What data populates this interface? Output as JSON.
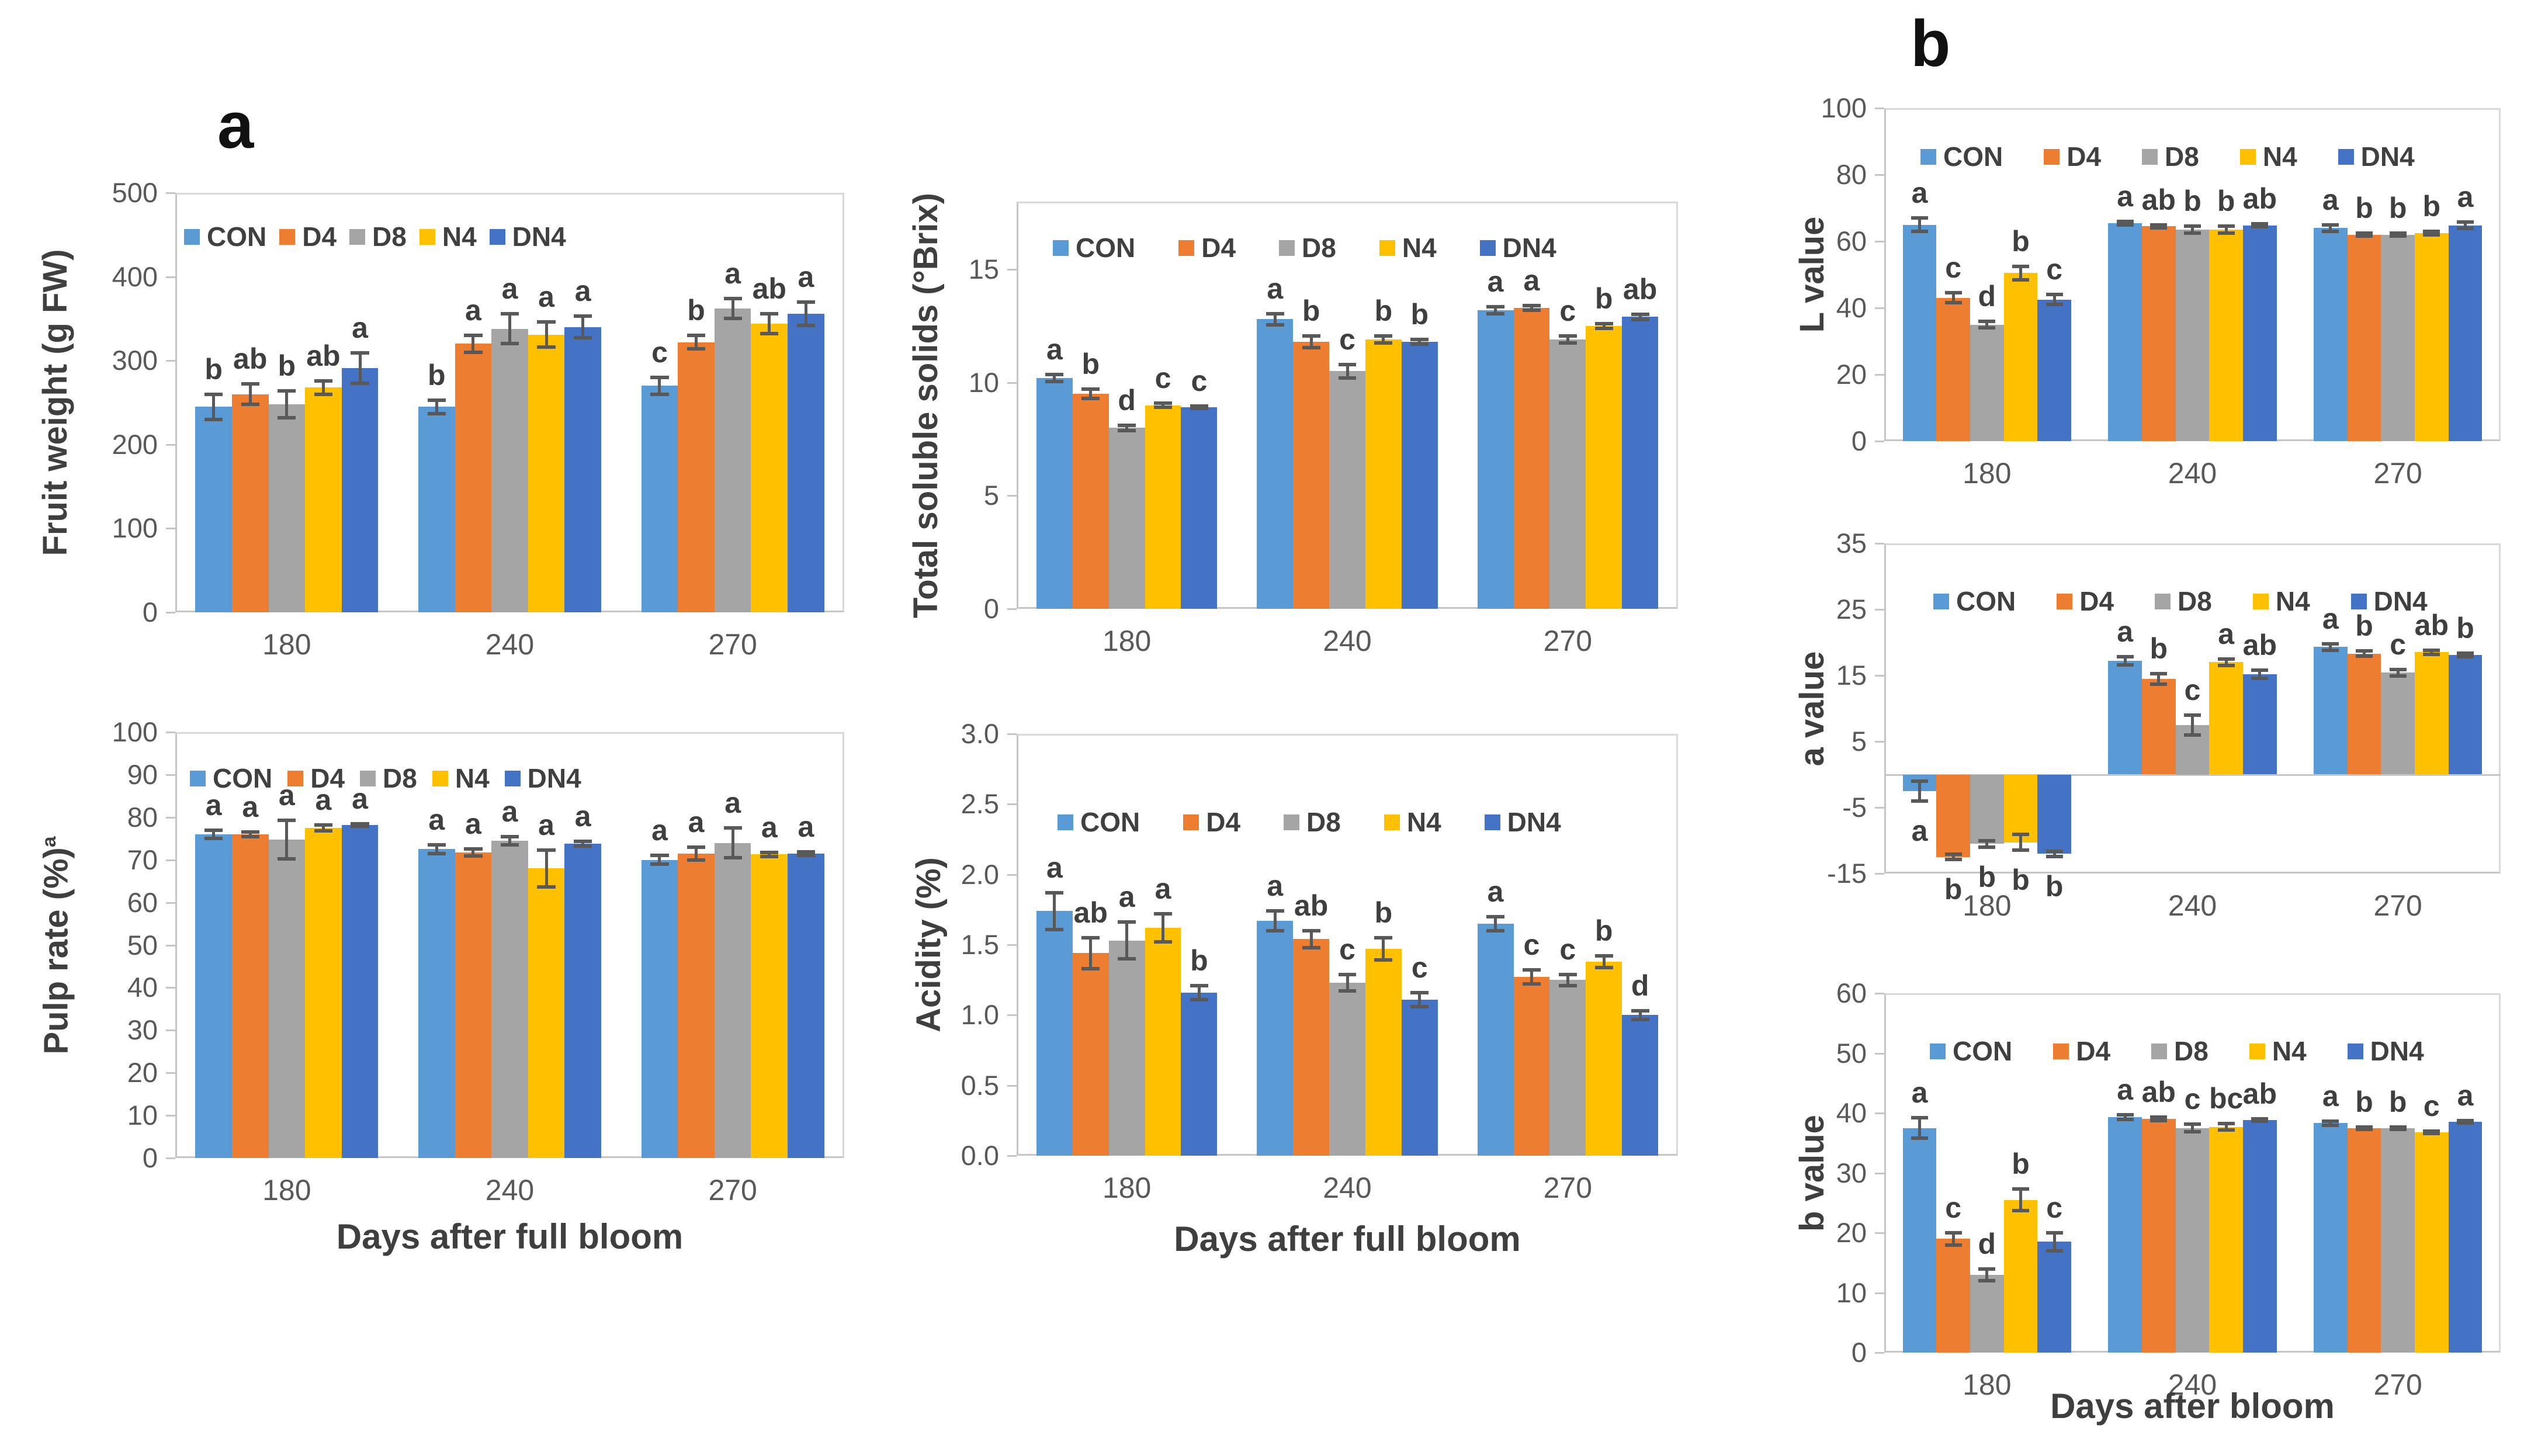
{
  "figure": {
    "panel_a_label": "a",
    "panel_b_label": "b"
  },
  "legend_labels": [
    "CON",
    "D4",
    "D8",
    "N4",
    "DN4"
  ],
  "colors": {
    "CON": "#5B9BD5",
    "D4": "#ED7D31",
    "D8": "#A5A5A5",
    "N4": "#FFC000",
    "DN4": "#4472C4",
    "axis_text": "#595959",
    "letter_text": "#3f3f3f",
    "error_bar": "#595959"
  },
  "chart_data": [
    {
      "id": "fruit-weight",
      "type": "bar",
      "ylabel": "Fruit weight (g FW)",
      "xlabel": "",
      "categories": [
        "180",
        "240",
        "270"
      ],
      "ylim": [
        0,
        500
      ],
      "yticks": [
        0,
        100,
        200,
        300,
        400,
        500
      ],
      "ytick_decimals": 0,
      "legend_position": "top-inside",
      "series": [
        {
          "name": "CON",
          "values": [
            245,
            245,
            270
          ],
          "errors": [
            15,
            8,
            10
          ],
          "letters": [
            "b",
            "b",
            "c"
          ]
        },
        {
          "name": "D4",
          "values": [
            260,
            320,
            322
          ],
          "errors": [
            12,
            10,
            8
          ],
          "letters": [
            "ab",
            "a",
            "b"
          ]
        },
        {
          "name": "D8",
          "values": [
            248,
            338,
            362
          ],
          "errors": [
            16,
            18,
            12
          ],
          "letters": [
            "b",
            "a",
            "a"
          ]
        },
        {
          "name": "N4",
          "values": [
            268,
            331,
            344
          ],
          "errors": [
            8,
            15,
            12
          ],
          "letters": [
            "ab",
            "a",
            "ab"
          ]
        },
        {
          "name": "DN4",
          "values": [
            291,
            340,
            356
          ],
          "errors": [
            18,
            13,
            14
          ],
          "letters": [
            "a",
            "a",
            "a"
          ]
        }
      ]
    },
    {
      "id": "total-soluble-solids",
      "type": "bar",
      "ylabel": "Total soluble solids (°Brix)",
      "xlabel": "",
      "categories": [
        "180",
        "240",
        "270"
      ],
      "ylim": [
        0,
        18
      ],
      "yticks": [
        0,
        5,
        10,
        15
      ],
      "ytick_decimals": 0,
      "legend_position": "top-inside",
      "series": [
        {
          "name": "CON",
          "values": [
            10.2,
            12.8,
            13.2
          ],
          "errors": [
            0.15,
            0.25,
            0.15
          ],
          "letters": [
            "a",
            "a",
            "a"
          ]
        },
        {
          "name": "D4",
          "values": [
            9.5,
            11.8,
            13.3
          ],
          "errors": [
            0.2,
            0.25,
            0.1
          ],
          "letters": [
            "b",
            "b",
            "a"
          ]
        },
        {
          "name": "D8",
          "values": [
            8.0,
            10.5,
            11.9
          ],
          "errors": [
            0.12,
            0.3,
            0.15
          ],
          "letters": [
            "d",
            "c",
            "c"
          ]
        },
        {
          "name": "N4",
          "values": [
            9.0,
            11.9,
            12.5
          ],
          "errors": [
            0.1,
            0.15,
            0.1
          ],
          "letters": [
            "c",
            "b",
            "b"
          ]
        },
        {
          "name": "DN4",
          "values": [
            8.9,
            11.8,
            12.9
          ],
          "errors": [
            0.05,
            0.1,
            0.12
          ],
          "letters": [
            "c",
            "b",
            "ab"
          ]
        }
      ]
    },
    {
      "id": "pulp-rate",
      "type": "bar",
      "ylabel": "Pulp rate (%)",
      "ylabel_sup": "a",
      "xlabel": "Days after full bloom",
      "categories": [
        "180",
        "240",
        "270"
      ],
      "ylim": [
        0,
        100
      ],
      "yticks": [
        0,
        10,
        20,
        30,
        40,
        50,
        60,
        70,
        80,
        90,
        100
      ],
      "ytick_decimals": 0,
      "legend_position": "top-inside",
      "series": [
        {
          "name": "CON",
          "values": [
            76,
            72.5,
            70
          ],
          "errors": [
            1,
            1,
            1
          ],
          "letters": [
            "a",
            "a",
            "a"
          ]
        },
        {
          "name": "D4",
          "values": [
            76,
            71.7,
            71.5
          ],
          "errors": [
            0.5,
            0.8,
            1.5
          ],
          "letters": [
            "a",
            "a",
            "a"
          ]
        },
        {
          "name": "D8",
          "values": [
            74.8,
            74.5,
            74
          ],
          "errors": [
            4.5,
            1,
            3.5
          ],
          "letters": [
            "a",
            "a",
            "a"
          ]
        },
        {
          "name": "N4",
          "values": [
            77.5,
            68,
            71.3
          ],
          "errors": [
            0.7,
            4.3,
            0.5
          ],
          "letters": [
            "a",
            "a",
            "a"
          ]
        },
        {
          "name": "DN4",
          "values": [
            78.2,
            73.8,
            71.5
          ],
          "errors": [
            0.3,
            0.6,
            0.4
          ],
          "letters": [
            "a",
            "a",
            "a"
          ]
        }
      ]
    },
    {
      "id": "acidity",
      "type": "bar",
      "ylabel": "Acidity (%)",
      "xlabel": "Days after full bloom",
      "categories": [
        "180",
        "240",
        "270"
      ],
      "ylim": [
        0,
        3
      ],
      "yticks": [
        0,
        0.5,
        1,
        1.5,
        2,
        2.5,
        3
      ],
      "ytick_decimals": 1,
      "legend_position": "top-inside",
      "series": [
        {
          "name": "CON",
          "values": [
            1.74,
            1.67,
            1.65
          ],
          "errors": [
            0.13,
            0.07,
            0.05
          ],
          "letters": [
            "a",
            "a",
            "a"
          ]
        },
        {
          "name": "D4",
          "values": [
            1.44,
            1.54,
            1.27
          ],
          "errors": [
            0.11,
            0.06,
            0.05
          ],
          "letters": [
            "ab",
            "ab",
            "c"
          ]
        },
        {
          "name": "D8",
          "values": [
            1.53,
            1.23,
            1.25
          ],
          "errors": [
            0.13,
            0.06,
            0.04
          ],
          "letters": [
            "a",
            "c",
            "c"
          ]
        },
        {
          "name": "N4",
          "values": [
            1.62,
            1.47,
            1.38
          ],
          "errors": [
            0.1,
            0.08,
            0.04
          ],
          "letters": [
            "a",
            "b",
            "b"
          ]
        },
        {
          "name": "DN4",
          "values": [
            1.16,
            1.11,
            1.0
          ],
          "errors": [
            0.05,
            0.05,
            0.03
          ],
          "letters": [
            "b",
            "c",
            "d"
          ]
        }
      ]
    },
    {
      "id": "l-value",
      "type": "bar",
      "ylabel": "L value",
      "xlabel": "",
      "categories": [
        "180",
        "240",
        "270"
      ],
      "ylim": [
        0,
        100
      ],
      "yticks": [
        0,
        20,
        40,
        60,
        80,
        100
      ],
      "ytick_decimals": 0,
      "legend_position": "top-inside",
      "series": [
        {
          "name": "CON",
          "values": [
            65,
            65.5,
            64
          ],
          "errors": [
            2,
            0.5,
            1
          ],
          "letters": [
            "a",
            "a",
            "a"
          ]
        },
        {
          "name": "D4",
          "values": [
            43,
            64.5,
            62
          ],
          "errors": [
            1.5,
            0.5,
            0.5
          ],
          "letters": [
            "c",
            "ab",
            "b"
          ]
        },
        {
          "name": "D8",
          "values": [
            35,
            63.5,
            62
          ],
          "errors": [
            1,
            1,
            0.5
          ],
          "letters": [
            "d",
            "b",
            "b"
          ]
        },
        {
          "name": "N4",
          "values": [
            50.5,
            63.5,
            62.5
          ],
          "errors": [
            2,
            1,
            0.5
          ],
          "letters": [
            "b",
            "b",
            "b"
          ]
        },
        {
          "name": "DN4",
          "values": [
            42.5,
            64.8,
            64.8
          ],
          "errors": [
            1.5,
            0.5,
            1
          ],
          "letters": [
            "c",
            "ab",
            "a"
          ]
        }
      ]
    },
    {
      "id": "a-value",
      "type": "bar",
      "ylabel": "a value",
      "xlabel": "",
      "categories": [
        "180",
        "240",
        "270"
      ],
      "ylim": [
        -15,
        35
      ],
      "yticks": [
        -15,
        -5,
        5,
        15,
        25,
        35
      ],
      "ytick_decimals": 0,
      "legend_position": "top-inside",
      "series": [
        {
          "name": "CON",
          "values": [
            -2.5,
            17.2,
            19.3
          ],
          "errors": [
            1.5,
            0.6,
            0.5
          ],
          "letters": [
            "a",
            "a",
            "a"
          ]
        },
        {
          "name": "D4",
          "values": [
            -12.5,
            14.5,
            18.3
          ],
          "errors": [
            0.4,
            0.8,
            0.4
          ],
          "letters": [
            "b",
            "b",
            "b"
          ]
        },
        {
          "name": "D8",
          "values": [
            -10.5,
            7.5,
            15.4
          ],
          "errors": [
            0.5,
            1.5,
            0.5
          ],
          "letters": [
            "b",
            "c",
            "c"
          ]
        },
        {
          "name": "N4",
          "values": [
            -10.3,
            17,
            18.5
          ],
          "errors": [
            1.2,
            0.5,
            0.3
          ],
          "letters": [
            "b",
            "a",
            "ab"
          ]
        },
        {
          "name": "DN4",
          "values": [
            -12,
            15.2,
            18.1
          ],
          "errors": [
            0.4,
            0.6,
            0.3
          ],
          "letters": [
            "b",
            "ab",
            "b"
          ]
        }
      ]
    },
    {
      "id": "b-value",
      "type": "bar",
      "ylabel": "b value",
      "xlabel": "Days after bloom",
      "categories": [
        "180",
        "240",
        "270"
      ],
      "ylim": [
        0,
        60
      ],
      "yticks": [
        0,
        10,
        20,
        30,
        40,
        50,
        60
      ],
      "ytick_decimals": 0,
      "legend_position": "top-inside",
      "series": [
        {
          "name": "CON",
          "values": [
            37.5,
            39.3,
            38.3
          ],
          "errors": [
            1.7,
            0.4,
            0.3
          ],
          "letters": [
            "a",
            "a",
            "a"
          ]
        },
        {
          "name": "D4",
          "values": [
            19,
            39,
            37.5
          ],
          "errors": [
            1,
            0.3,
            0.2
          ],
          "letters": [
            "c",
            "ab",
            "b"
          ]
        },
        {
          "name": "D8",
          "values": [
            13,
            37.5,
            37.5
          ],
          "errors": [
            1,
            0.6,
            0.2
          ],
          "letters": [
            "d",
            "c",
            "b"
          ]
        },
        {
          "name": "N4",
          "values": [
            25.5,
            37.7,
            36.8
          ],
          "errors": [
            1.8,
            0.5,
            0.2
          ],
          "letters": [
            "b",
            "bc",
            "c"
          ]
        },
        {
          "name": "DN4",
          "values": [
            18.5,
            38.8,
            38.5
          ],
          "errors": [
            1.5,
            0.2,
            0.2
          ],
          "letters": [
            "c",
            "ab",
            "a"
          ]
        }
      ]
    }
  ]
}
